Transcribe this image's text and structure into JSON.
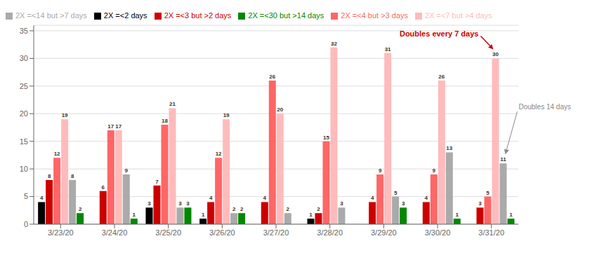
{
  "chart_data": {
    "type": "bar",
    "categories": [
      "3/23/20",
      "3/24/20",
      "3/25/20",
      "3/26/20",
      "3/27/20",
      "3/28/20",
      "3/29/20",
      "3/30/20",
      "3/31/20"
    ],
    "series": [
      {
        "name": "2X =<2 days",
        "color": "#000000",
        "values": [
          4,
          0,
          3,
          1,
          0,
          1,
          0,
          0,
          0
        ]
      },
      {
        "name": "2X =<3 but >2 days",
        "color": "#cc0000",
        "values": [
          8,
          6,
          7,
          4,
          4,
          2,
          4,
          4,
          3
        ]
      },
      {
        "name": "2X =<4 but >3 days",
        "color": "#ff6666",
        "values": [
          12,
          17,
          18,
          12,
          26,
          15,
          9,
          9,
          5
        ]
      },
      {
        "name": "2X =<7 but >4 days",
        "color": "#ffbbbb",
        "values": [
          19,
          17,
          21,
          19,
          20,
          32,
          31,
          26,
          30
        ]
      },
      {
        "name": "2X =<14 but >7 days",
        "color": "#aaaaaa",
        "values": [
          8,
          9,
          3,
          2,
          2,
          3,
          5,
          13,
          11
        ]
      },
      {
        "name": "2X =<30 but >14 days",
        "color": "#008800",
        "values": [
          2,
          1,
          3,
          2,
          0,
          0,
          3,
          1,
          1
        ]
      }
    ],
    "ylim": [
      0,
      36
    ],
    "yticks": [
      0,
      5,
      10,
      15,
      20,
      25,
      30,
      35
    ],
    "grid": true,
    "legend": "upper left",
    "data_labels": true,
    "annotations": [
      {
        "text": "Doubles every 7 days",
        "color": "#cc0000",
        "category": "3/31/20",
        "series": "2X =<7 but >4 days"
      },
      {
        "text": "Doubles 14 days",
        "color": "#888888",
        "category": "3/31/20",
        "series": "2X =<14 but >7 days"
      }
    ]
  }
}
